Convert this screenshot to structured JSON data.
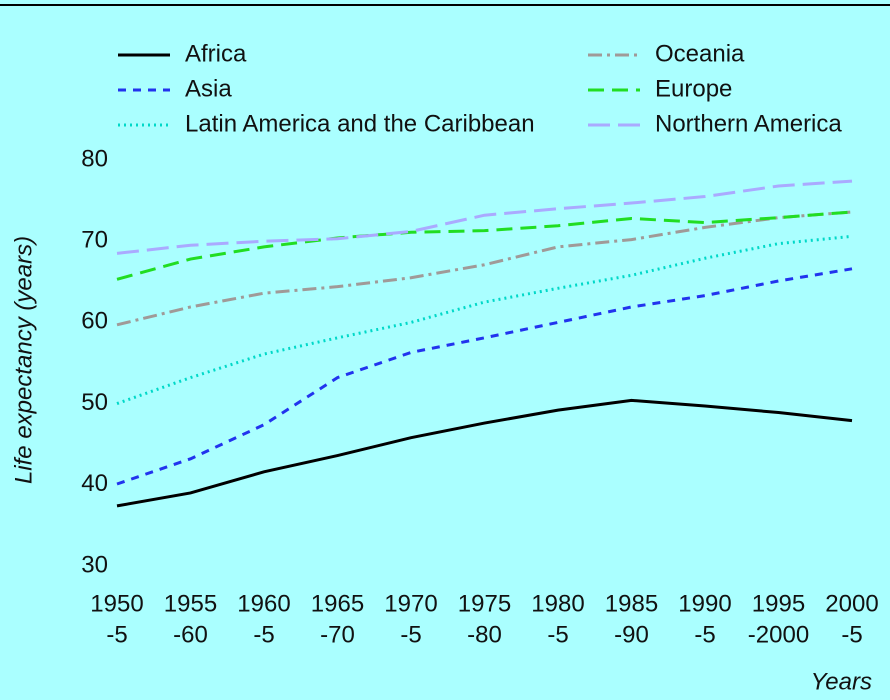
{
  "chart_data": {
    "type": "line",
    "y_label": "Life expectancy (years)",
    "x_label": "Years",
    "categories": [
      [
        "1950",
        "-5"
      ],
      [
        "1955",
        "-60"
      ],
      [
        "1960",
        "-5"
      ],
      [
        "1965",
        "-70"
      ],
      [
        "1970",
        "-5"
      ],
      [
        "1975",
        "-80"
      ],
      [
        "1980",
        "-5"
      ],
      [
        "1985",
        "-90"
      ],
      [
        "1990",
        "-5"
      ],
      [
        "1995",
        "-2000"
      ],
      [
        "2000",
        "-5"
      ]
    ],
    "series": [
      {
        "name": "Africa",
        "color": "#000000",
        "dash": "none",
        "values": [
          37.4,
          39.0,
          41.6,
          43.6,
          45.8,
          47.6,
          49.2,
          50.4,
          49.7,
          48.9,
          47.9
        ]
      },
      {
        "name": "Asia",
        "color": "#2233ee",
        "dash": "8 7",
        "values": [
          40.1,
          43.2,
          47.4,
          53.2,
          56.3,
          58.1,
          60.0,
          61.9,
          63.3,
          65.1,
          66.6
        ]
      },
      {
        "name": "Latin America and the Caribbean",
        "color": "#00d8c8",
        "dash": "2 4",
        "values": [
          50.0,
          53.2,
          56.1,
          58.1,
          60.0,
          62.5,
          64.2,
          65.8,
          67.9,
          69.7,
          70.6
        ]
      },
      {
        "name": "Oceania",
        "color": "#a09a98",
        "dash": "14 5 3 5",
        "values": [
          59.7,
          61.9,
          63.6,
          64.4,
          65.5,
          67.1,
          69.3,
          70.2,
          71.7,
          72.9,
          73.6
        ]
      },
      {
        "name": "Europe",
        "color": "#22dd22",
        "dash": "16 8",
        "values": [
          65.3,
          67.8,
          69.3,
          70.4,
          71.1,
          71.3,
          71.9,
          72.8,
          72.3,
          72.9,
          73.6
        ]
      },
      {
        "name": "Northern America",
        "color": "#aaaaff",
        "dash": "22 8",
        "values": [
          68.5,
          69.5,
          70.0,
          70.3,
          71.2,
          73.2,
          74.0,
          74.7,
          75.5,
          76.8,
          77.4
        ]
      }
    ],
    "ylim": [
      30,
      80
    ],
    "yticks": [
      30,
      40,
      50,
      60,
      70,
      80
    ],
    "grid": false
  }
}
